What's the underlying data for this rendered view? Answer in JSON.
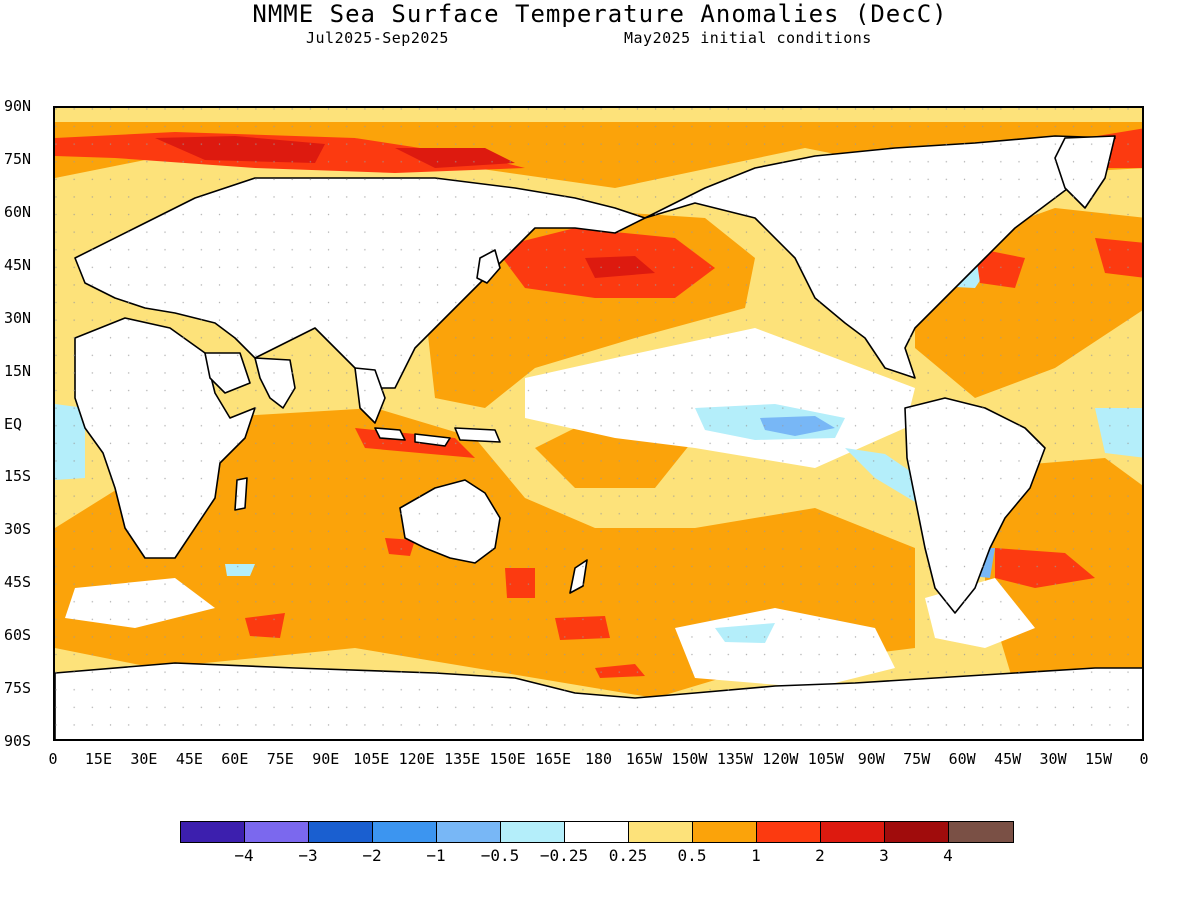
{
  "header": {
    "title": "NMME Sea Surface Temperature Anomalies (DecC)",
    "period": "Jul2025-Sep2025",
    "init": "May2025 initial conditions"
  },
  "axes": {
    "lat_labels": [
      "90N",
      "75N",
      "60N",
      "45N",
      "30N",
      "15N",
      "EQ",
      "15S",
      "30S",
      "45S",
      "60S",
      "75S",
      "90S"
    ],
    "lon_labels": [
      "0",
      "15E",
      "30E",
      "45E",
      "60E",
      "75E",
      "90E",
      "105E",
      "120E",
      "135E",
      "150E",
      "165E",
      "180",
      "165W",
      "150W",
      "135W",
      "120W",
      "105W",
      "90W",
      "75W",
      "60W",
      "45W",
      "30W",
      "15W",
      "0"
    ]
  },
  "legend": {
    "colors": [
      "#3c1fae",
      "#7b68ee",
      "#1a5fd0",
      "#3c95f0",
      "#78b7f6",
      "#b4eefa",
      "#ffffff",
      "#fde27a",
      "#fba30a",
      "#fc3a10",
      "#dd1a0f",
      "#a00c0c",
      "#7a5045"
    ],
    "labels": [
      "−4",
      "−3",
      "−2",
      "−1",
      "−0.5",
      "−0.25",
      "0.25",
      "0.5",
      "1",
      "2",
      "3",
      "4"
    ]
  },
  "palette": {
    "land": "#ffffff",
    "coast": "#000000"
  }
}
